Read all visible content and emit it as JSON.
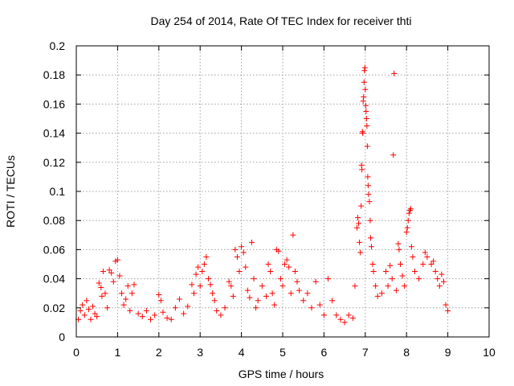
{
  "chart_data": {
    "type": "scatter",
    "title": "Day 254 of 2014, Rate Of TEC Index for receiver thti",
    "xlabel": "GPS time / hours",
    "ylabel": "ROTI / TECUs",
    "xlim": [
      0,
      10
    ],
    "ylim": [
      0,
      0.2
    ],
    "x_ticks": [
      "0",
      "1",
      "2",
      "3",
      "4",
      "5",
      "6",
      "7",
      "8",
      "9",
      "10"
    ],
    "y_ticks": [
      "0",
      "0.02",
      "0.04",
      "0.06",
      "0.08",
      "0.1",
      "0.12",
      "0.14",
      "0.16",
      "0.18",
      "0.2"
    ],
    "grid": true,
    "marker": "+",
    "color": "#ff0000",
    "series": [
      {
        "name": "ROTI",
        "points": [
          [
            0.05,
            0.012
          ],
          [
            0.1,
            0.018
          ],
          [
            0.15,
            0.022
          ],
          [
            0.2,
            0.015
          ],
          [
            0.25,
            0.025
          ],
          [
            0.3,
            0.019
          ],
          [
            0.35,
            0.012
          ],
          [
            0.4,
            0.021
          ],
          [
            0.45,
            0.016
          ],
          [
            0.5,
            0.014
          ],
          [
            0.55,
            0.037
          ],
          [
            0.6,
            0.034
          ],
          [
            0.62,
            0.028
          ],
          [
            0.65,
            0.045
          ],
          [
            0.7,
            0.03
          ],
          [
            0.75,
            0.02
          ],
          [
            0.8,
            0.046
          ],
          [
            0.85,
            0.044
          ],
          [
            0.9,
            0.038
          ],
          [
            0.95,
            0.052
          ],
          [
            1.0,
            0.053
          ],
          [
            1.05,
            0.042
          ],
          [
            1.1,
            0.03
          ],
          [
            1.15,
            0.022
          ],
          [
            1.2,
            0.026
          ],
          [
            1.25,
            0.035
          ],
          [
            1.3,
            0.018
          ],
          [
            1.35,
            0.03
          ],
          [
            1.4,
            0.036
          ],
          [
            1.5,
            0.016
          ],
          [
            1.6,
            0.014
          ],
          [
            1.7,
            0.018
          ],
          [
            1.8,
            0.012
          ],
          [
            1.9,
            0.015
          ],
          [
            2.0,
            0.029
          ],
          [
            2.05,
            0.025
          ],
          [
            2.1,
            0.017
          ],
          [
            2.2,
            0.013
          ],
          [
            2.3,
            0.012
          ],
          [
            2.4,
            0.02
          ],
          [
            2.5,
            0.026
          ],
          [
            2.6,
            0.016
          ],
          [
            2.7,
            0.021
          ],
          [
            2.8,
            0.036
          ],
          [
            2.85,
            0.03
          ],
          [
            2.9,
            0.043
          ],
          [
            2.95,
            0.048
          ],
          [
            3.0,
            0.035
          ],
          [
            3.05,
            0.045
          ],
          [
            3.1,
            0.05
          ],
          [
            3.15,
            0.055
          ],
          [
            3.2,
            0.04
          ],
          [
            3.25,
            0.036
          ],
          [
            3.3,
            0.03
          ],
          [
            3.35,
            0.025
          ],
          [
            3.4,
            0.018
          ],
          [
            3.5,
            0.015
          ],
          [
            3.6,
            0.02
          ],
          [
            3.7,
            0.038
          ],
          [
            3.75,
            0.035
          ],
          [
            3.8,
            0.028
          ],
          [
            3.85,
            0.06
          ],
          [
            3.9,
            0.055
          ],
          [
            3.95,
            0.045
          ],
          [
            4.0,
            0.062
          ],
          [
            4.05,
            0.058
          ],
          [
            4.1,
            0.048
          ],
          [
            4.15,
            0.032
          ],
          [
            4.2,
            0.027
          ],
          [
            4.25,
            0.065
          ],
          [
            4.3,
            0.04
          ],
          [
            4.35,
            0.02
          ],
          [
            4.4,
            0.025
          ],
          [
            4.5,
            0.035
          ],
          [
            4.6,
            0.028
          ],
          [
            4.65,
            0.05
          ],
          [
            4.7,
            0.045
          ],
          [
            4.75,
            0.03
          ],
          [
            4.8,
            0.022
          ],
          [
            4.85,
            0.06
          ],
          [
            4.9,
            0.059
          ],
          [
            4.95,
            0.04
          ],
          [
            5.0,
            0.035
          ],
          [
            5.05,
            0.05
          ],
          [
            5.1,
            0.053
          ],
          [
            5.15,
            0.048
          ],
          [
            5.2,
            0.03
          ],
          [
            5.25,
            0.07
          ],
          [
            5.3,
            0.045
          ],
          [
            5.35,
            0.038
          ],
          [
            5.4,
            0.032
          ],
          [
            5.5,
            0.025
          ],
          [
            5.6,
            0.03
          ],
          [
            5.7,
            0.02
          ],
          [
            5.8,
            0.038
          ],
          [
            5.9,
            0.022
          ],
          [
            6.0,
            0.015
          ],
          [
            6.1,
            0.04
          ],
          [
            6.2,
            0.025
          ],
          [
            6.3,
            0.015
          ],
          [
            6.4,
            0.012
          ],
          [
            6.5,
            0.01
          ],
          [
            6.6,
            0.015
          ],
          [
            6.7,
            0.013
          ],
          [
            6.75,
            0.035
          ],
          [
            6.8,
            0.075
          ],
          [
            6.82,
            0.082
          ],
          [
            6.84,
            0.078
          ],
          [
            6.86,
            0.065
          ],
          [
            6.88,
            0.058
          ],
          [
            6.9,
            0.09
          ],
          [
            6.91,
            0.118
          ],
          [
            6.92,
            0.115
          ],
          [
            6.93,
            0.141
          ],
          [
            6.94,
            0.14
          ],
          [
            6.95,
            0.162
          ],
          [
            6.96,
            0.165
          ],
          [
            6.97,
            0.175
          ],
          [
            6.98,
            0.183
          ],
          [
            6.99,
            0.185
          ],
          [
            7.0,
            0.17
          ],
          [
            7.01,
            0.159
          ],
          [
            7.02,
            0.155
          ],
          [
            7.03,
            0.15
          ],
          [
            7.04,
            0.145
          ],
          [
            7.05,
            0.131
          ],
          [
            7.06,
            0.11
          ],
          [
            7.07,
            0.104
          ],
          [
            7.08,
            0.098
          ],
          [
            7.1,
            0.093
          ],
          [
            7.12,
            0.08
          ],
          [
            7.13,
            0.068
          ],
          [
            7.15,
            0.062
          ],
          [
            7.18,
            0.05
          ],
          [
            7.2,
            0.045
          ],
          [
            7.25,
            0.035
          ],
          [
            7.3,
            0.028
          ],
          [
            7.4,
            0.03
          ],
          [
            7.5,
            0.045
          ],
          [
            7.55,
            0.035
          ],
          [
            7.6,
            0.049
          ],
          [
            7.65,
            0.04
          ],
          [
            7.68,
            0.125
          ],
          [
            7.7,
            0.181
          ],
          [
            7.75,
            0.032
          ],
          [
            7.8,
            0.064
          ],
          [
            7.82,
            0.06
          ],
          [
            7.85,
            0.05
          ],
          [
            7.9,
            0.042
          ],
          [
            7.95,
            0.035
          ],
          [
            8.0,
            0.072
          ],
          [
            8.02,
            0.075
          ],
          [
            8.04,
            0.08
          ],
          [
            8.06,
            0.085
          ],
          [
            8.08,
            0.087
          ],
          [
            8.1,
            0.088
          ],
          [
            8.12,
            0.062
          ],
          [
            8.15,
            0.055
          ],
          [
            8.2,
            0.045
          ],
          [
            8.3,
            0.04
          ],
          [
            8.4,
            0.05
          ],
          [
            8.45,
            0.058
          ],
          [
            8.5,
            0.055
          ],
          [
            8.6,
            0.05
          ],
          [
            8.65,
            0.052
          ],
          [
            8.7,
            0.045
          ],
          [
            8.75,
            0.04
          ],
          [
            8.8,
            0.035
          ],
          [
            8.85,
            0.043
          ],
          [
            8.9,
            0.038
          ],
          [
            8.95,
            0.022
          ],
          [
            9.0,
            0.018
          ]
        ]
      }
    ]
  }
}
